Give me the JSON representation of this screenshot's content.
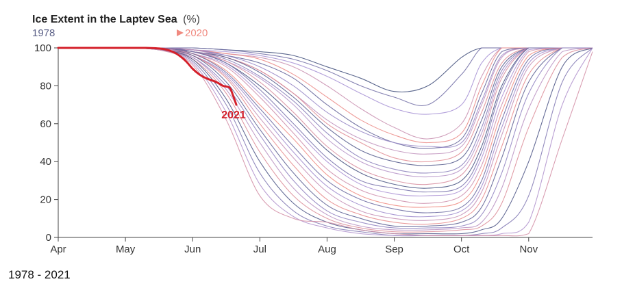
{
  "chart_data": {
    "type": "line",
    "title": "Ice Extent in the Laptev Sea",
    "unit": "(%)",
    "legend": {
      "start_label": "1978",
      "end_label": "2020",
      "start_color": "#3c4a78",
      "mid_color": "#a891d6",
      "end_color": "#f08a80"
    },
    "x_tick_labels": [
      "Apr",
      "May",
      "Jun",
      "Jul",
      "Aug",
      "Sep",
      "Oct",
      "Nov"
    ],
    "x_tick_positions": [
      0,
      1,
      2,
      3,
      4,
      5,
      6,
      7
    ],
    "xlim": [
      0,
      7.95
    ],
    "y_ticks": [
      0,
      20,
      40,
      60,
      80,
      100
    ],
    "ylim": [
      0,
      100
    ],
    "xlabel": "",
    "ylabel": "",
    "highlight": {
      "name": "2021",
      "color": "#d4202a",
      "x": [
        0,
        0.5,
        1.0,
        1.3,
        1.55,
        1.7,
        1.8,
        1.9,
        2.0,
        2.1,
        2.2,
        2.35,
        2.45,
        2.55,
        2.6,
        2.65
      ],
      "y": [
        100,
        100,
        100,
        100,
        99.5,
        98,
        96,
        93,
        89,
        86,
        84,
        82,
        80,
        79,
        75,
        70
      ]
    },
    "series_template": {
      "x": [
        0,
        1.0,
        1.5,
        2.0,
        2.5,
        3.0,
        3.5,
        4.0,
        4.5,
        5.0,
        5.5,
        6.0,
        6.3,
        6.6,
        7.0,
        7.5,
        7.95
      ],
      "note": "Each series gives y values (ice %) at the x positions above; x is in months since Apr 1."
    },
    "series": [
      {
        "name": "s01",
        "y": [
          100,
          100,
          100,
          100,
          99,
          98,
          96,
          90,
          84,
          77,
          80,
          95,
          100,
          100,
          100,
          100,
          100
        ]
      },
      {
        "name": "s02",
        "y": [
          100,
          100,
          100,
          100,
          99,
          97,
          94,
          88,
          80,
          74,
          70,
          86,
          100,
          100,
          100,
          100,
          100
        ]
      },
      {
        "name": "s03",
        "y": [
          100,
          100,
          100,
          99,
          98,
          96,
          92,
          85,
          76,
          68,
          65,
          70,
          92,
          100,
          100,
          100,
          100
        ]
      },
      {
        "name": "s04",
        "y": [
          100,
          100,
          100,
          99,
          97,
          95,
          90,
          80,
          68,
          58,
          52,
          60,
          85,
          100,
          100,
          100,
          100
        ]
      },
      {
        "name": "s05",
        "y": [
          100,
          100,
          100,
          99,
          97,
          94,
          86,
          74,
          62,
          54,
          50,
          55,
          80,
          100,
          100,
          100,
          100
        ]
      },
      {
        "name": "s06",
        "y": [
          100,
          100,
          100,
          99,
          96,
          92,
          84,
          70,
          58,
          50,
          47,
          52,
          76,
          98,
          100,
          100,
          100
        ]
      },
      {
        "name": "s07",
        "y": [
          100,
          100,
          100,
          99,
          96,
          90,
          80,
          66,
          56,
          50,
          48,
          50,
          72,
          96,
          100,
          100,
          100
        ]
      },
      {
        "name": "s08",
        "y": [
          100,
          100,
          100,
          99,
          95,
          88,
          76,
          62,
          52,
          46,
          44,
          48,
          70,
          95,
          100,
          100,
          100
        ]
      },
      {
        "name": "s09",
        "y": [
          100,
          100,
          100,
          98,
          95,
          88,
          76,
          60,
          50,
          42,
          40,
          45,
          66,
          92,
          100,
          100,
          100
        ]
      },
      {
        "name": "s10",
        "y": [
          100,
          100,
          100,
          98,
          95,
          87,
          74,
          58,
          46,
          40,
          38,
          42,
          62,
          90,
          100,
          100,
          100
        ]
      },
      {
        "name": "s11",
        "y": [
          100,
          100,
          100,
          98,
          94,
          85,
          72,
          55,
          42,
          36,
          34,
          38,
          58,
          88,
          100,
          100,
          100
        ]
      },
      {
        "name": "s12",
        "y": [
          100,
          100,
          100,
          98,
          93,
          84,
          70,
          52,
          40,
          34,
          32,
          36,
          55,
          86,
          100,
          100,
          100
        ]
      },
      {
        "name": "s13",
        "y": [
          100,
          100,
          100,
          98,
          93,
          82,
          66,
          48,
          36,
          30,
          28,
          33,
          52,
          84,
          100,
          100,
          100
        ]
      },
      {
        "name": "s14",
        "y": [
          100,
          100,
          100,
          98,
          92,
          80,
          64,
          46,
          34,
          28,
          26,
          30,
          48,
          80,
          100,
          100,
          100
        ]
      },
      {
        "name": "s15",
        "y": [
          100,
          100,
          100,
          98,
          92,
          78,
          60,
          42,
          30,
          26,
          24,
          27,
          45,
          78,
          100,
          100,
          100
        ]
      },
      {
        "name": "s16",
        "y": [
          100,
          100,
          100,
          97,
          91,
          76,
          58,
          40,
          28,
          23,
          22,
          25,
          42,
          74,
          99,
          100,
          100
        ]
      },
      {
        "name": "s17",
        "y": [
          100,
          100,
          100,
          97,
          90,
          74,
          55,
          36,
          25,
          20,
          18,
          22,
          38,
          70,
          98,
          100,
          100
        ]
      },
      {
        "name": "s18",
        "y": [
          100,
          100,
          100,
          97,
          88,
          70,
          52,
          33,
          22,
          17,
          16,
          19,
          34,
          66,
          96,
          100,
          100
        ]
      },
      {
        "name": "s19",
        "y": [
          100,
          100,
          100,
          97,
          87,
          68,
          48,
          30,
          20,
          15,
          13,
          16,
          30,
          62,
          94,
          100,
          100
        ]
      },
      {
        "name": "s20",
        "y": [
          100,
          100,
          100,
          96,
          86,
          66,
          45,
          27,
          17,
          12,
          11,
          14,
          27,
          58,
          92,
          100,
          100
        ]
      },
      {
        "name": "s21",
        "y": [
          100,
          100,
          100,
          96,
          85,
          63,
          42,
          24,
          14,
          10,
          9,
          12,
          24,
          54,
          90,
          100,
          100
        ]
      },
      {
        "name": "s22",
        "y": [
          100,
          100,
          99,
          96,
          84,
          60,
          38,
          20,
          12,
          8,
          7,
          10,
          20,
          48,
          86,
          100,
          100
        ]
      },
      {
        "name": "s23",
        "y": [
          100,
          100,
          99,
          96,
          82,
          57,
          34,
          17,
          10,
          6,
          6,
          8,
          16,
          42,
          82,
          100,
          100
        ]
      },
      {
        "name": "s24",
        "y": [
          100,
          100,
          99,
          95,
          80,
          54,
          30,
          14,
          8,
          5,
          5,
          6,
          12,
          34,
          76,
          100,
          100
        ]
      },
      {
        "name": "s25",
        "y": [
          100,
          100,
          99,
          95,
          78,
          50,
          26,
          12,
          6,
          4,
          4,
          5,
          8,
          26,
          68,
          98,
          100
        ]
      },
      {
        "name": "s26",
        "y": [
          100,
          100,
          99,
          94,
          76,
          45,
          22,
          10,
          5,
          3,
          3,
          4,
          6,
          18,
          58,
          95,
          100
        ]
      },
      {
        "name": "s27",
        "y": [
          100,
          100,
          99,
          94,
          73,
          40,
          18,
          8,
          4,
          2,
          2,
          2,
          4,
          10,
          40,
          90,
          100
        ]
      },
      {
        "name": "s28",
        "y": [
          100,
          100,
          99,
          93,
          70,
          34,
          14,
          6,
          3,
          1,
          1,
          1,
          2,
          5,
          22,
          82,
          100
        ]
      },
      {
        "name": "s29",
        "y": [
          100,
          100,
          99,
          92,
          66,
          28,
          11,
          5,
          2,
          1,
          1,
          1,
          1,
          2,
          8,
          70,
          100
        ]
      },
      {
        "name": "s30",
        "y": [
          100,
          100,
          99,
          91,
          62,
          22,
          10,
          8,
          4,
          2,
          1,
          1,
          1,
          1,
          2,
          52,
          98
        ]
      }
    ]
  },
  "caption": "1978 - 2021"
}
